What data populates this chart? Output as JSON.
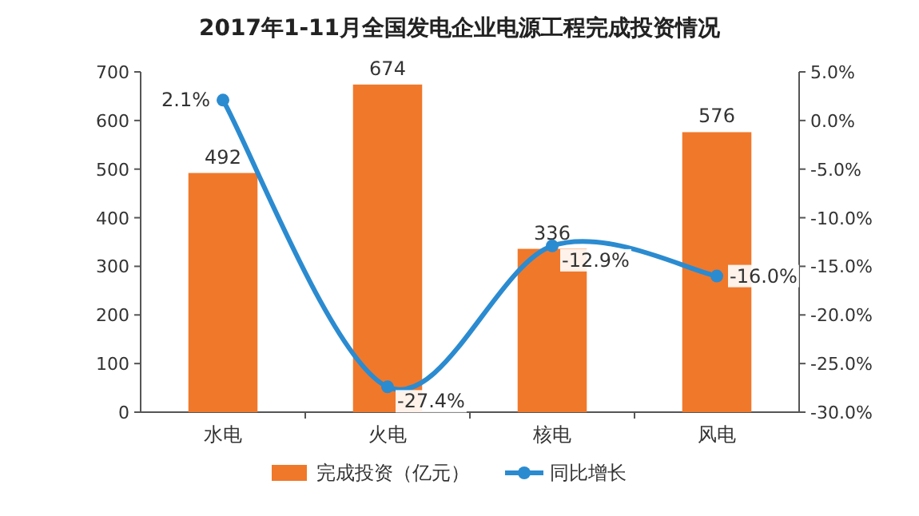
{
  "chart_data": {
    "type": "bar",
    "title": "2017年1-11月全国发电企业电源工程完成投资情况",
    "categories": [
      "水电",
      "火电",
      "核电",
      "风电"
    ],
    "series": [
      {
        "name": "完成投资（亿元）",
        "color": "#f0782a",
        "values": [
          492,
          674,
          336,
          576
        ],
        "value_labels": [
          "492",
          "674",
          "336",
          "576"
        ]
      },
      {
        "name": "同比增长",
        "type": "line",
        "axis": "y2",
        "color": "#2b8bd0",
        "values": [
          2.1,
          -27.4,
          -12.9,
          -16.0
        ],
        "value_labels": [
          "2.1%",
          "-27.4%",
          "-12.9%",
          "-16.0%"
        ],
        "marker": "circle"
      }
    ],
    "ylim": [
      0,
      700
    ],
    "yticks": [
      0,
      100,
      200,
      300,
      400,
      500,
      600,
      700
    ],
    "y2lim": [
      -30,
      5
    ],
    "y2ticks": [
      {
        "value": 5,
        "label": "5.0%"
      },
      {
        "value": 0,
        "label": "0.0%"
      },
      {
        "value": -5,
        "label": "-5.0%"
      },
      {
        "value": -10,
        "label": "-10.0%"
      },
      {
        "value": -15,
        "label": "-15.0%"
      },
      {
        "value": -20,
        "label": "-20.0%"
      },
      {
        "value": -25,
        "label": "-25.0%"
      },
      {
        "value": -30,
        "label": "-30.0%"
      }
    ],
    "legend": "bottom",
    "grid": false
  }
}
